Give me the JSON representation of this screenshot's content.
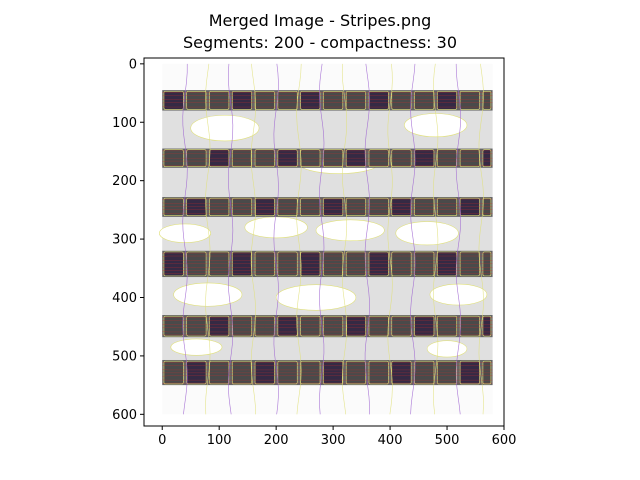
{
  "figure": {
    "title_line_1": "Merged Image - Stripes.png",
    "title_line_2": "Segments: 200 - compactness: 30"
  },
  "image": {
    "width": 580,
    "height": 600,
    "background_color": "#fbfbfb",
    "band_color_dark": "#666666",
    "band_color_light": "#e0e0e0",
    "segment_border_colors": [
      "#e0e07a",
      "#9b5fd0"
    ],
    "noise_line_color": "#d02a2a",
    "dark_band_rows": [
      {
        "y0": 45,
        "y1": 80
      },
      {
        "y0": 145,
        "y1": 178
      },
      {
        "y0": 228,
        "y1": 262
      },
      {
        "y0": 320,
        "y1": 365
      },
      {
        "y0": 430,
        "y1": 468
      },
      {
        "y0": 507,
        "y1": 550
      }
    ],
    "light_band_rows": [
      {
        "y0": 80,
        "y1": 145
      },
      {
        "y0": 178,
        "y1": 228
      },
      {
        "y0": 262,
        "y1": 320
      },
      {
        "y0": 365,
        "y1": 430
      },
      {
        "y0": 468,
        "y1": 507
      }
    ],
    "segment_columns": [
      0,
      40,
      80,
      120,
      160,
      200,
      240,
      280,
      320,
      360,
      400,
      440,
      480,
      520,
      560,
      580
    ]
  },
  "axes": {
    "x_ticks": [
      "0",
      "100",
      "200",
      "300",
      "400",
      "500",
      "600"
    ],
    "y_ticks": [
      "0",
      "100",
      "200",
      "300",
      "400",
      "500",
      "600"
    ],
    "x_range": [
      -32,
      600
    ],
    "y_range": [
      -10,
      620
    ]
  }
}
